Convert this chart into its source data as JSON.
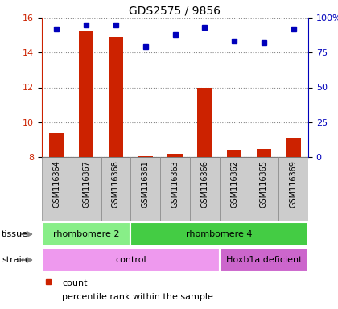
{
  "title": "GDS2575 / 9856",
  "samples": [
    "GSM116364",
    "GSM116367",
    "GSM116368",
    "GSM116361",
    "GSM116363",
    "GSM116366",
    "GSM116362",
    "GSM116365",
    "GSM116369"
  ],
  "count_values": [
    9.4,
    15.2,
    14.9,
    8.05,
    8.2,
    12.0,
    8.4,
    8.45,
    9.1
  ],
  "percentile_values": [
    92,
    95,
    95,
    79,
    88,
    93,
    83,
    82,
    92
  ],
  "ylim_left": [
    8,
    16
  ],
  "ylim_right": [
    0,
    100
  ],
  "yticks_left": [
    8,
    10,
    12,
    14,
    16
  ],
  "yticks_right": [
    0,
    25,
    50,
    75,
    100
  ],
  "ytick_labels_right": [
    "0",
    "25",
    "50",
    "75",
    "100%"
  ],
  "bar_color": "#cc2200",
  "dot_color": "#0000bb",
  "bar_bottom": 8,
  "tissue_groups": [
    {
      "label": "rhombomere 2",
      "start": 0,
      "end": 3,
      "color": "#88ee88"
    },
    {
      "label": "rhombomere 4",
      "start": 3,
      "end": 9,
      "color": "#44cc44"
    }
  ],
  "strain_groups": [
    {
      "label": "control",
      "start": 0,
      "end": 6,
      "color": "#ee99ee"
    },
    {
      "label": "Hoxb1a deficient",
      "start": 6,
      "end": 9,
      "color": "#cc66cc"
    }
  ],
  "tissue_label": "tissue",
  "strain_label": "strain",
  "legend_count_label": "count",
  "legend_pct_label": "percentile rank within the sample",
  "sample_bg_color": "#cccccc",
  "sample_border_color": "#888888",
  "left_axis_color": "#cc2200",
  "right_axis_color": "#0000bb",
  "grid_color": "#888888",
  "fig_width": 4.2,
  "fig_height": 3.84,
  "dpi": 100
}
